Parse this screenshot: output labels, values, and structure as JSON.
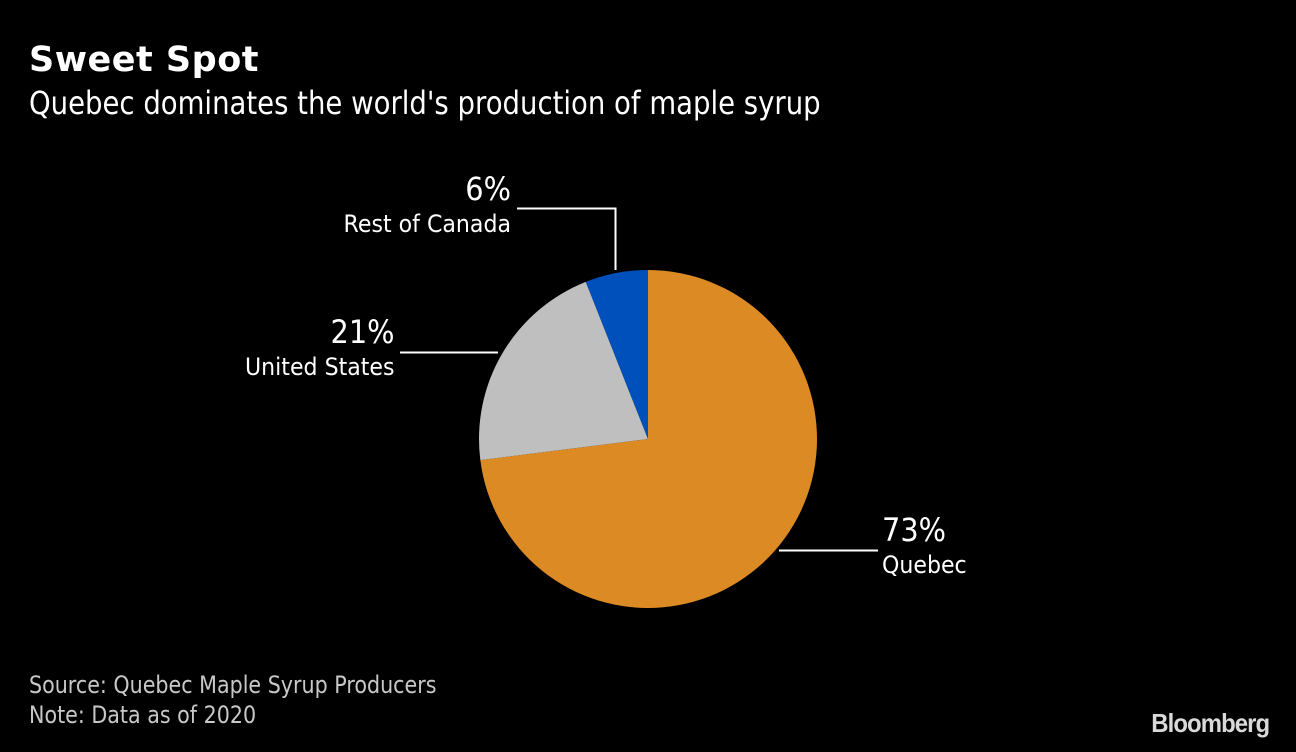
{
  "header": {
    "title": "Sweet Spot",
    "subtitle": "Quebec dominates the world's production of maple syrup"
  },
  "labels": {
    "quebec": {
      "pct": "73%",
      "name": "Quebec"
    },
    "us": {
      "pct": "21%",
      "name": "United States"
    },
    "roc": {
      "pct": "6%",
      "name": "Rest of Canada"
    }
  },
  "footer": {
    "source": "Source: Quebec Maple Syrup Producers",
    "note": "Note: Data as of 2020",
    "logo": "Bloomberg"
  },
  "colors": {
    "background": "#000000",
    "quebec": "#DB8A24",
    "united_states": "#BFBFBF",
    "rest_of_canada": "#0050BC",
    "leader_lines": "#FFFFFF"
  },
  "chart_data": {
    "type": "pie",
    "title": "Sweet Spot",
    "subtitle": "Quebec dominates the world's production of maple syrup",
    "categories": [
      "Quebec",
      "United States",
      "Rest of Canada"
    ],
    "values": [
      73,
      21,
      6
    ],
    "unit": "%",
    "colors": [
      "#DB8A24",
      "#BFBFBF",
      "#0050BC"
    ],
    "start_angle": "12 o'clock, clockwise",
    "legend": "none (direct labels with leader lines)",
    "source": "Quebec Maple Syrup Producers",
    "note": "Data as of 2020"
  }
}
